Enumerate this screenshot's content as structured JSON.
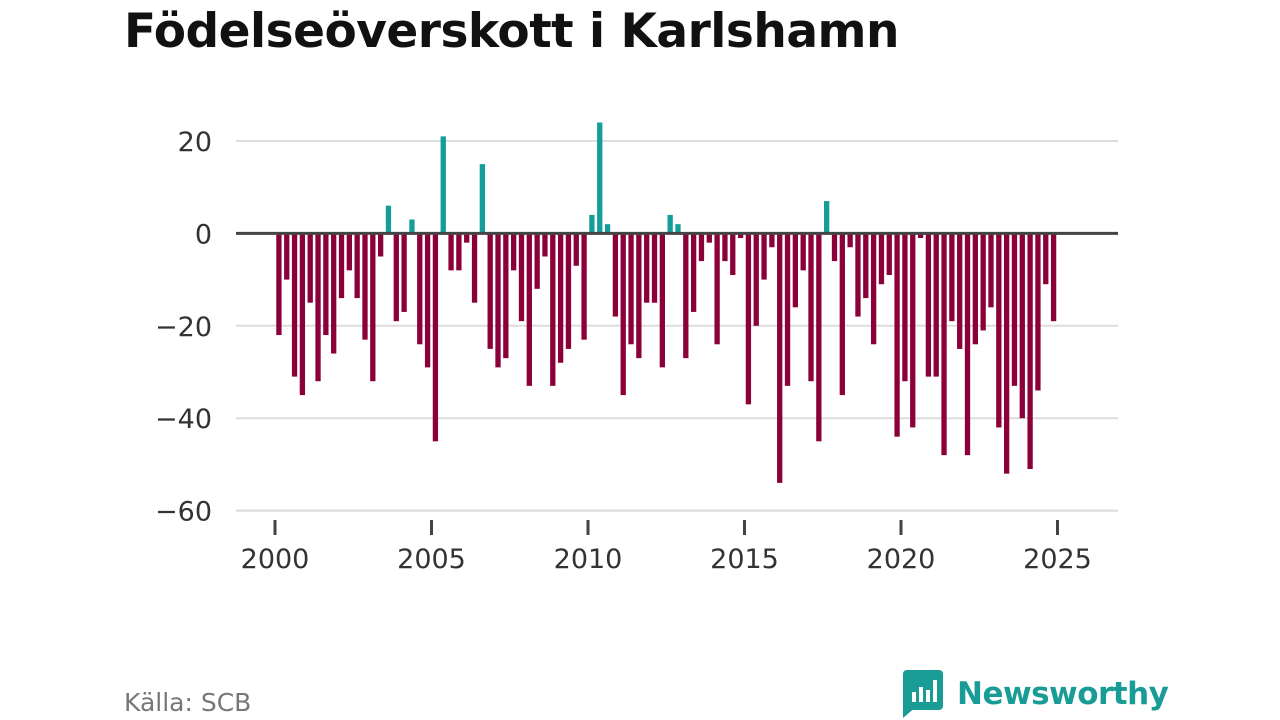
{
  "title": "Födelseöverskott i Karlshamn",
  "source": "Källa: SCB",
  "brand": {
    "name": "Newsworthy",
    "icon": "newsworthy-logo-icon"
  },
  "colors": {
    "positive": "#139e97",
    "negative": "#8c0039",
    "grid": "#dddddd",
    "zero_line": "#444444",
    "text": "#333333"
  },
  "chart_data": {
    "type": "bar",
    "title": "Födelseöverskott i Karlshamn",
    "xlabel": "",
    "ylabel": "",
    "xlim": [
      1999.8,
      2027.5
    ],
    "ylim": [
      -60,
      25
    ],
    "xticks": [
      2000,
      2005,
      2010,
      2015,
      2020,
      2025
    ],
    "xtick_labels": [
      "2000",
      "2005",
      "2010",
      "2015",
      "2020",
      "2025"
    ],
    "yticks": [
      20,
      0,
      -20,
      -40,
      -60
    ],
    "ytick_labels": [
      "20",
      "0",
      "−20",
      "−40",
      "−60"
    ],
    "grid": true,
    "start_year": 2000,
    "bars_per_year": 4,
    "first_period": 1,
    "values": [
      -22,
      -10,
      -31,
      -35,
      -15,
      -32,
      -22,
      -26,
      -14,
      -8,
      -14,
      -23,
      -32,
      -5,
      6,
      -19,
      -17,
      3,
      -24,
      -29,
      -45,
      21,
      -8,
      -8,
      -2,
      -15,
      15,
      -25,
      -29,
      -27,
      -8,
      -19,
      -33,
      -12,
      -5,
      -33,
      -28,
      -25,
      -7,
      -23,
      4,
      24,
      2,
      -18,
      -35,
      -24,
      -27,
      -15,
      -15,
      -29,
      4,
      2,
      -27,
      -17,
      -6,
      -2,
      -24,
      -6,
      -9,
      -1,
      -37,
      -20,
      -10,
      -3,
      -54,
      -33,
      -16,
      -8,
      -32,
      -45,
      7,
      -6,
      -35,
      -3,
      -18,
      -14,
      -24,
      -11,
      -9,
      -44,
      -32,
      -42,
      -1,
      -31,
      -31,
      -48,
      -19,
      -25,
      -48,
      -24,
      -21,
      -16,
      -42,
      -52,
      -33,
      -40,
      -51,
      -34,
      -11,
      -19
    ]
  }
}
